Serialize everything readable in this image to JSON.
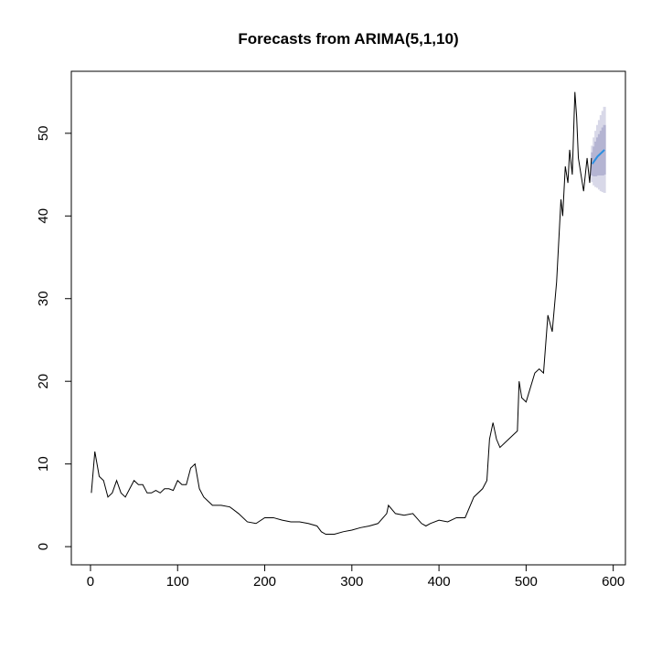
{
  "chart_data": {
    "type": "line",
    "title": "Forecasts from ARIMA(5,1,10)",
    "x": [
      1,
      5,
      10,
      15,
      20,
      25,
      30,
      35,
      40,
      45,
      50,
      55,
      60,
      65,
      70,
      75,
      80,
      85,
      90,
      95,
      100,
      105,
      110,
      115,
      120,
      125,
      130,
      135,
      140,
      150,
      160,
      170,
      180,
      190,
      200,
      210,
      220,
      230,
      240,
      250,
      260,
      265,
      270,
      280,
      290,
      300,
      310,
      320,
      330,
      340,
      342,
      350,
      360,
      370,
      380,
      385,
      390,
      400,
      410,
      420,
      430,
      440,
      450,
      455,
      458,
      462,
      466,
      470,
      480,
      490,
      492,
      495,
      500,
      510,
      515,
      520,
      525,
      530,
      535,
      540,
      542,
      545,
      548,
      550,
      553,
      556,
      558,
      560,
      563,
      566,
      570,
      573,
      575
    ],
    "values": [
      6.5,
      11.5,
      8.5,
      8,
      6,
      6.5,
      8,
      6.5,
      6,
      7,
      8,
      7.5,
      7.5,
      6.5,
      6.5,
      6.8,
      6.5,
      7,
      7,
      6.8,
      8,
      7.5,
      7.5,
      9.5,
      10,
      7,
      6,
      5.5,
      5,
      5,
      4.8,
      4,
      3,
      2.8,
      3.5,
      3.5,
      3.2,
      3,
      3,
      2.8,
      2.5,
      1.8,
      1.5,
      1.5,
      1.8,
      2,
      2.3,
      2.5,
      2.8,
      4,
      5,
      4,
      3.8,
      4,
      2.8,
      2.5,
      2.8,
      3.2,
      3,
      3.5,
      3.5,
      6,
      7,
      8,
      13,
      15,
      13,
      12,
      13,
      14,
      20,
      18,
      17.5,
      21,
      21.5,
      21,
      28,
      26,
      32,
      42,
      40,
      46,
      44,
      48,
      45,
      55,
      52,
      47,
      45,
      43,
      47,
      44,
      47
    ],
    "color": "#000000",
    "forecast": {
      "x": [
        576,
        578,
        580,
        582,
        584,
        586,
        588,
        590
      ],
      "values": [
        46.3,
        46.6,
        46.9,
        47.2,
        47.4,
        47.6,
        47.8,
        48
      ],
      "lo80": [
        44.9,
        44.8,
        44.8,
        44.9,
        44.9,
        44.9,
        44.9,
        45
      ],
      "hi80": [
        47.7,
        48.4,
        49,
        49.5,
        49.9,
        50.3,
        50.7,
        51
      ],
      "lo95": [
        44.1,
        43.7,
        43.5,
        43.4,
        43.2,
        43,
        42.9,
        42.8
      ],
      "hi95": [
        48.5,
        49.5,
        50.3,
        51,
        51.6,
        52.2,
        52.7,
        53.2
      ],
      "color": "#2b8fe0",
      "color80": "#b4b4d2",
      "color95": "#d8d8e8"
    },
    "xlim": [
      -22,
      614
    ],
    "ylim": [
      -2.2,
      57.5
    ],
    "xticks": [
      0,
      100,
      200,
      300,
      400,
      500,
      600
    ],
    "yticks": [
      0,
      10,
      20,
      30,
      40,
      50
    ]
  }
}
